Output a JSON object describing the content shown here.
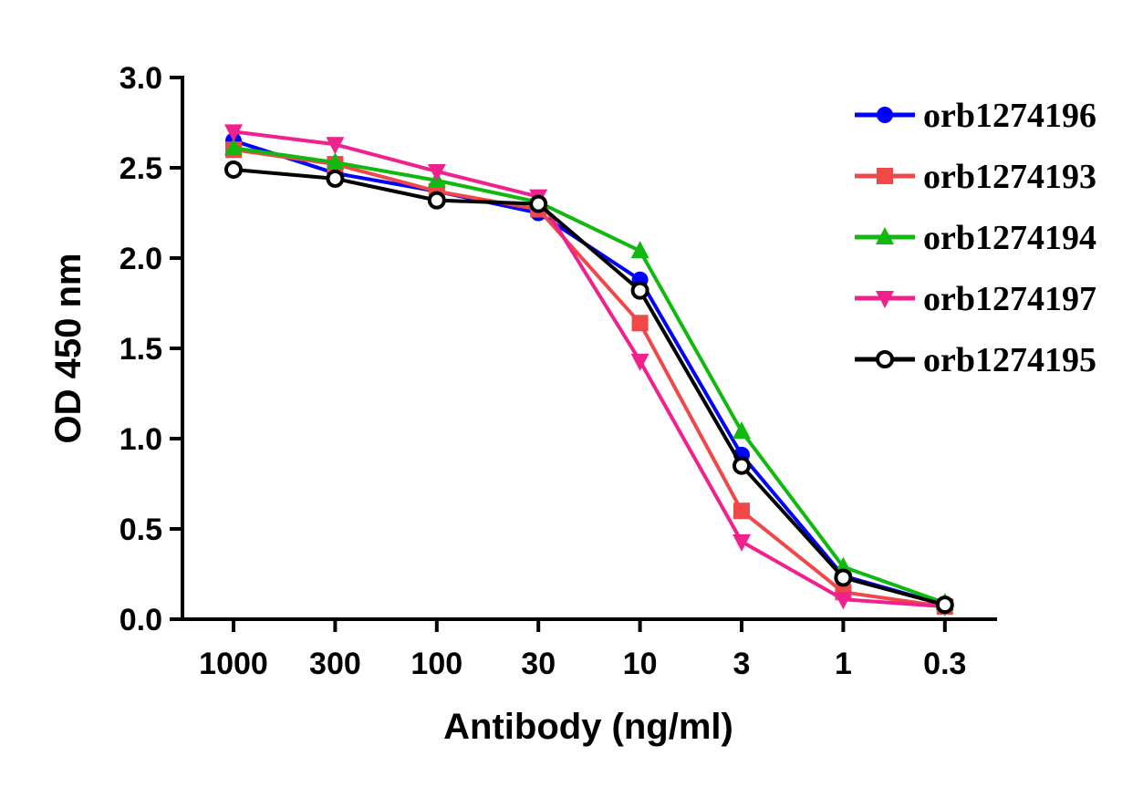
{
  "chart_data": {
    "type": "line",
    "title": "",
    "xlabel": "Antibody (ng/ml)",
    "ylabel": "OD 450 nm",
    "categories": [
      "1000",
      "300",
      "100",
      "30",
      "10",
      "3",
      "1",
      "0.3"
    ],
    "ylim": [
      0,
      3.0
    ],
    "yticks": [
      "0.0",
      "0.5",
      "1.0",
      "1.5",
      "2.0",
      "2.5",
      "3.0"
    ],
    "grid": false,
    "legend_position": "top-right",
    "series": [
      {
        "name": "orb1274196",
        "color": "#0000ff",
        "marker": "circle",
        "values": [
          2.65,
          2.47,
          2.37,
          2.25,
          1.88,
          0.91,
          0.24,
          0.08
        ]
      },
      {
        "name": "orb1274193",
        "color": "#f04848",
        "marker": "square",
        "values": [
          2.6,
          2.52,
          2.37,
          2.27,
          1.64,
          0.6,
          0.15,
          0.07
        ]
      },
      {
        "name": "orb1274194",
        "color": "#10b810",
        "marker": "triangle-up",
        "values": [
          2.61,
          2.53,
          2.43,
          2.31,
          2.04,
          1.04,
          0.29,
          0.09
        ]
      },
      {
        "name": "orb1274197",
        "color": "#f0208c",
        "marker": "triangle-down",
        "values": [
          2.7,
          2.63,
          2.48,
          2.34,
          1.43,
          0.43,
          0.11,
          0.07
        ]
      },
      {
        "name": "orb1274195",
        "color": "#000000",
        "marker": "open-circle",
        "values": [
          2.49,
          2.44,
          2.32,
          2.3,
          1.82,
          0.85,
          0.23,
          0.08
        ]
      }
    ]
  }
}
